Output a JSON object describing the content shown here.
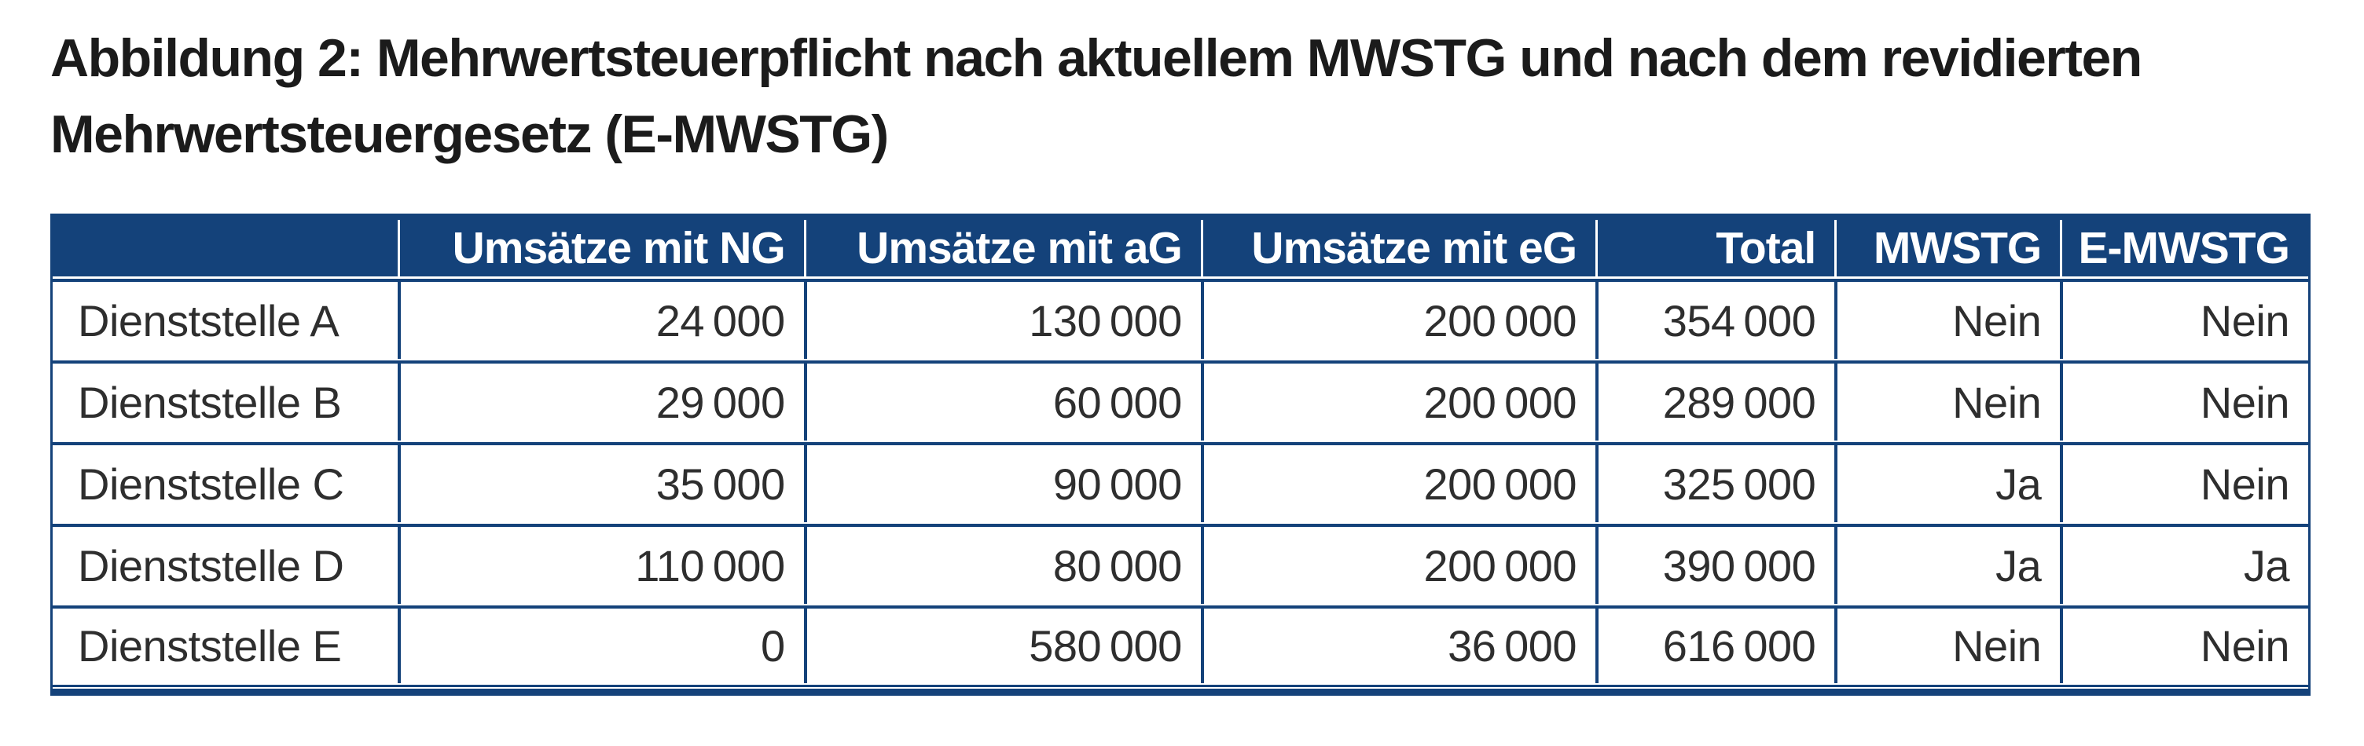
{
  "title": {
    "line1": "Abbildung 2: Mehrwertsteuerpflicht nach aktuellem MWSTG und nach dem revidierten",
    "line2": "Mehrwertsteuergesetz (E-MWSTG)"
  },
  "colors": {
    "accent_blue": "#14427a",
    "header_text": "#ffffff",
    "body_text": "#2e2e2e",
    "title_text": "#1b1b1b"
  },
  "table": {
    "columns": [
      "",
      "Umsätze mit NG",
      "Umsätze mit aG",
      "Umsätze mit eG",
      "Total",
      "MWSTG",
      "E-MWSTG"
    ],
    "rows": [
      [
        "Dienststelle A",
        "24 000",
        "130 000",
        "200 000",
        "354 000",
        "Nein",
        "Nein"
      ],
      [
        "Dienststelle B",
        "29 000",
        "60 000",
        "200 000",
        "289 000",
        "Nein",
        "Nein"
      ],
      [
        "Dienststelle C",
        "35 000",
        "90 000",
        "200 000",
        "325 000",
        "Ja",
        "Nein"
      ],
      [
        "Dienststelle D",
        "110 000",
        "80 000",
        "200 000",
        "390 000",
        "Ja",
        "Ja"
      ],
      [
        "Dienststelle E",
        "0",
        "580 000",
        "36 000",
        "616 000",
        "Nein",
        "Nein"
      ]
    ]
  }
}
